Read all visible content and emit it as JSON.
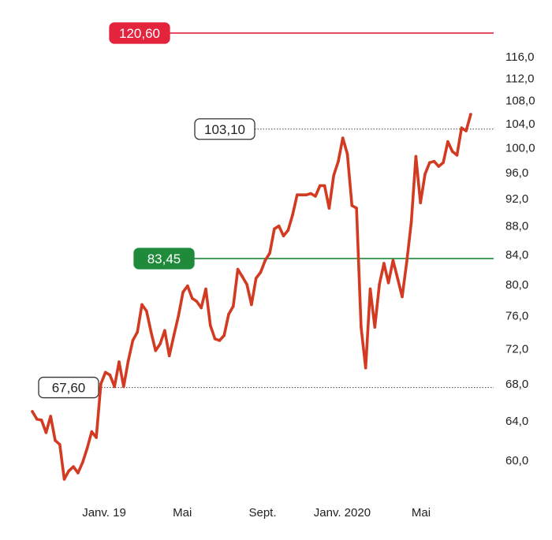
{
  "chart_data": {
    "type": "line",
    "title": "",
    "xlabel": "",
    "ylabel": "",
    "y_scale": "log",
    "ylim": [
      56.5,
      124
    ],
    "grid": false,
    "legend": "none",
    "y_ticks": [
      "116,0",
      "112,0",
      "108,0",
      "104,0",
      "100,0",
      "96,0",
      "92,0",
      "88,0",
      "84,0",
      "80,0",
      "76,0",
      "72,0",
      "68,0",
      "64,0",
      "60,0"
    ],
    "y_tick_values": [
      116,
      112,
      108,
      104,
      100,
      96,
      92,
      88,
      84,
      80,
      76,
      72,
      68,
      64,
      60
    ],
    "x_ticks": [
      {
        "label": "Janv. 19",
        "date": "2019-01-01"
      },
      {
        "label": "Mai",
        "date": "2019-05-01"
      },
      {
        "label": "Sept.",
        "date": "2019-09-01"
      },
      {
        "label": "Janv. 2020",
        "date": "2020-01-01"
      },
      {
        "label": "Mai",
        "date": "2020-05-01"
      }
    ],
    "series": [
      {
        "color": "#d23b22",
        "points": [
          [
            "2018-09-13",
            65.0
          ],
          [
            "2018-09-20",
            64.2
          ],
          [
            "2018-09-27",
            64.1
          ],
          [
            "2018-10-04",
            62.8
          ],
          [
            "2018-10-11",
            64.5
          ],
          [
            "2018-10-18",
            62.0
          ],
          [
            "2018-10-25",
            61.6
          ],
          [
            "2018-11-01",
            58.2
          ],
          [
            "2018-11-08",
            59.0
          ],
          [
            "2018-11-15",
            59.4
          ],
          [
            "2018-11-22",
            58.8
          ],
          [
            "2018-11-29",
            59.8
          ],
          [
            "2018-12-06",
            61.2
          ],
          [
            "2018-12-13",
            62.9
          ],
          [
            "2018-12-20",
            62.3
          ],
          [
            "2018-12-27",
            68.0
          ],
          [
            "2019-01-03",
            69.3
          ],
          [
            "2019-01-10",
            69.0
          ],
          [
            "2019-01-17",
            67.7
          ],
          [
            "2019-01-24",
            70.5
          ],
          [
            "2019-01-31",
            67.7
          ],
          [
            "2019-02-07",
            70.6
          ],
          [
            "2019-02-14",
            73.0
          ],
          [
            "2019-02-21",
            74.0
          ],
          [
            "2019-02-28",
            77.4
          ],
          [
            "2019-03-07",
            76.6
          ],
          [
            "2019-03-14",
            74.0
          ],
          [
            "2019-03-21",
            71.8
          ],
          [
            "2019-03-28",
            72.6
          ],
          [
            "2019-04-04",
            74.2
          ],
          [
            "2019-04-11",
            71.2
          ],
          [
            "2019-04-18",
            73.6
          ],
          [
            "2019-04-25",
            76.0
          ],
          [
            "2019-05-02",
            79.0
          ],
          [
            "2019-05-09",
            79.8
          ],
          [
            "2019-05-16",
            78.2
          ],
          [
            "2019-05-23",
            77.8
          ],
          [
            "2019-05-30",
            77.0
          ],
          [
            "2019-06-06",
            79.4
          ],
          [
            "2019-06-13",
            74.8
          ],
          [
            "2019-06-20",
            73.2
          ],
          [
            "2019-06-27",
            73.0
          ],
          [
            "2019-07-04",
            73.6
          ],
          [
            "2019-07-11",
            76.2
          ],
          [
            "2019-07-18",
            77.2
          ],
          [
            "2019-07-25",
            82.0
          ],
          [
            "2019-08-01",
            81.0
          ],
          [
            "2019-08-08",
            80.0
          ],
          [
            "2019-08-15",
            77.4
          ],
          [
            "2019-08-22",
            80.8
          ],
          [
            "2019-08-29",
            81.6
          ],
          [
            "2019-09-05",
            83.2
          ],
          [
            "2019-09-12",
            84.2
          ],
          [
            "2019-09-19",
            87.6
          ],
          [
            "2019-09-26",
            88.0
          ],
          [
            "2019-10-03",
            86.6
          ],
          [
            "2019-10-10",
            87.4
          ],
          [
            "2019-10-17",
            89.6
          ],
          [
            "2019-10-24",
            92.6
          ],
          [
            "2019-10-31",
            92.6
          ],
          [
            "2019-11-07",
            92.6
          ],
          [
            "2019-11-14",
            92.8
          ],
          [
            "2019-11-21",
            92.4
          ],
          [
            "2019-11-28",
            94.0
          ],
          [
            "2019-12-05",
            94.0
          ],
          [
            "2019-12-12",
            90.6
          ],
          [
            "2019-12-19",
            95.6
          ],
          [
            "2019-12-26",
            97.8
          ],
          [
            "2020-01-02",
            101.6
          ],
          [
            "2020-01-09",
            99.0
          ],
          [
            "2020-01-16",
            91.0
          ],
          [
            "2020-01-23",
            90.6
          ],
          [
            "2020-01-30",
            74.6
          ],
          [
            "2020-02-06",
            69.8
          ],
          [
            "2020-02-13",
            79.4
          ],
          [
            "2020-02-20",
            74.6
          ],
          [
            "2020-02-27",
            80.0
          ],
          [
            "2020-03-05",
            82.8
          ],
          [
            "2020-03-12",
            80.2
          ],
          [
            "2020-03-19",
            83.2
          ],
          [
            "2020-03-26",
            80.8
          ],
          [
            "2020-04-02",
            78.4
          ],
          [
            "2020-04-09",
            83.0
          ],
          [
            "2020-04-16",
            88.6
          ],
          [
            "2020-04-23",
            98.6
          ],
          [
            "2020-04-30",
            91.4
          ],
          [
            "2020-05-07",
            95.8
          ],
          [
            "2020-05-14",
            97.6
          ],
          [
            "2020-05-21",
            97.8
          ],
          [
            "2020-05-28",
            97.0
          ],
          [
            "2020-06-04",
            97.6
          ],
          [
            "2020-06-11",
            101.0
          ],
          [
            "2020-06-18",
            99.4
          ],
          [
            "2020-06-25",
            98.8
          ],
          [
            "2020-07-02",
            103.3
          ],
          [
            "2020-07-09",
            102.8
          ],
          [
            "2020-07-16",
            105.6
          ]
        ]
      }
    ],
    "reference_lines": [
      {
        "label": "120,60",
        "value": 120.6,
        "style": "solid",
        "line_color": "#e4233d",
        "box_fill": "#e4233d",
        "text_color": "#ffffff"
      },
      {
        "label": "103,10",
        "value": 103.1,
        "style": "dotted",
        "line_color": "#444444",
        "box_fill": "#ffffff",
        "text_color": "#222222"
      },
      {
        "label": "83,45",
        "value": 83.45,
        "style": "solid",
        "line_color": "#1f8a3a",
        "box_fill": "#1f8a3a",
        "text_color": "#ffffff"
      },
      {
        "label": "67,60",
        "value": 67.6,
        "style": "dotted",
        "line_color": "#444444",
        "box_fill": "#ffffff",
        "text_color": "#222222"
      }
    ]
  }
}
